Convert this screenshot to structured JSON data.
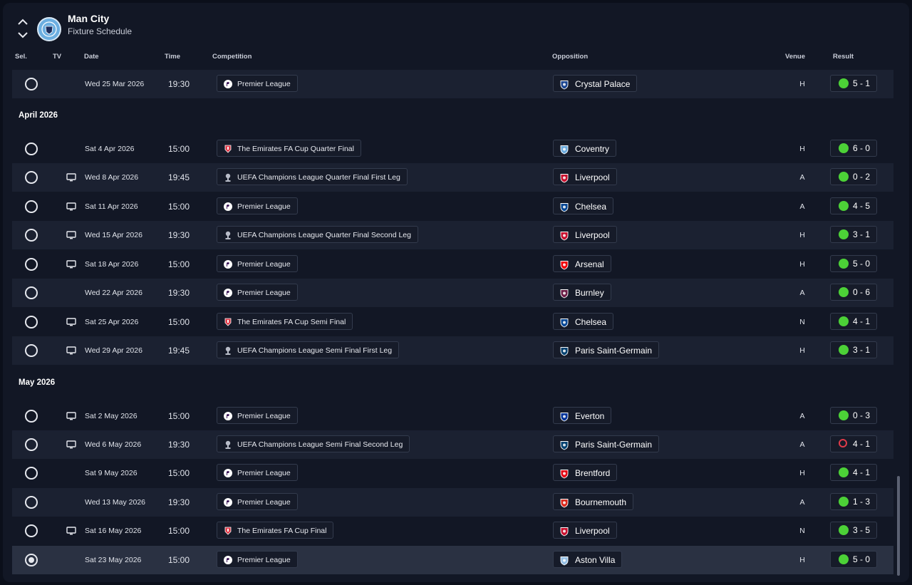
{
  "header": {
    "club_name": "Man City",
    "subtitle": "Fixture Schedule"
  },
  "columns": {
    "sel": "Sel.",
    "tv": "TV",
    "date": "Date",
    "time": "Time",
    "competition": "Competition",
    "opposition": "Opposition",
    "venue": "Venue",
    "result": "Result"
  },
  "months": [
    "April 2026",
    "May 2026"
  ],
  "fixtures": [
    {
      "date": "Wed 25 Mar 2026",
      "time": "19:30",
      "tv": false,
      "competition": "Premier League",
      "comp_icon": "premier-league-icon",
      "opposition": "Crystal Palace",
      "venue": "H",
      "result": "5 - 1",
      "outcome": "win",
      "selected": false
    },
    {
      "date": "Sat 4 Apr 2026",
      "time": "15:00",
      "tv": false,
      "competition": "The Emirates FA Cup Quarter Final",
      "comp_icon": "fa-cup-icon",
      "opposition": "Coventry",
      "venue": "H",
      "result": "6 - 0",
      "outcome": "win",
      "selected": false
    },
    {
      "date": "Wed 8 Apr 2026",
      "time": "19:45",
      "tv": true,
      "competition": "UEFA Champions League Quarter Final First Leg",
      "comp_icon": "champions-league-icon",
      "opposition": "Liverpool",
      "venue": "A",
      "result": "0 - 2",
      "outcome": "win",
      "selected": false
    },
    {
      "date": "Sat 11 Apr 2026",
      "time": "15:00",
      "tv": true,
      "competition": "Premier League",
      "comp_icon": "premier-league-icon",
      "opposition": "Chelsea",
      "venue": "A",
      "result": "4 - 5",
      "outcome": "win",
      "selected": false
    },
    {
      "date": "Wed 15 Apr 2026",
      "time": "19:30",
      "tv": true,
      "competition": "UEFA Champions League Quarter Final Second Leg",
      "comp_icon": "champions-league-icon",
      "opposition": "Liverpool",
      "venue": "H",
      "result": "3 - 1",
      "outcome": "win",
      "selected": false
    },
    {
      "date": "Sat 18 Apr 2026",
      "time": "15:00",
      "tv": true,
      "competition": "Premier League",
      "comp_icon": "premier-league-icon",
      "opposition": "Arsenal",
      "venue": "H",
      "result": "5 - 0",
      "outcome": "win",
      "selected": false
    },
    {
      "date": "Wed 22 Apr 2026",
      "time": "19:30",
      "tv": false,
      "competition": "Premier League",
      "comp_icon": "premier-league-icon",
      "opposition": "Burnley",
      "venue": "A",
      "result": "0 - 6",
      "outcome": "win",
      "selected": false
    },
    {
      "date": "Sat 25 Apr 2026",
      "time": "15:00",
      "tv": true,
      "competition": "The Emirates FA Cup Semi Final",
      "comp_icon": "fa-cup-icon",
      "opposition": "Chelsea",
      "venue": "N",
      "result": "4 - 1",
      "outcome": "win",
      "selected": false
    },
    {
      "date": "Wed 29 Apr 2026",
      "time": "19:45",
      "tv": true,
      "competition": "UEFA Champions League Semi Final First Leg",
      "comp_icon": "champions-league-icon",
      "opposition": "Paris Saint-Germain",
      "venue": "H",
      "result": "3 - 1",
      "outcome": "win",
      "selected": false
    },
    {
      "date": "Sat 2 May 2026",
      "time": "15:00",
      "tv": true,
      "competition": "Premier League",
      "comp_icon": "premier-league-icon",
      "opposition": "Everton",
      "venue": "A",
      "result": "0 - 3",
      "outcome": "win",
      "selected": false
    },
    {
      "date": "Wed 6 May 2026",
      "time": "19:30",
      "tv": true,
      "competition": "UEFA Champions League Semi Final Second Leg",
      "comp_icon": "champions-league-icon",
      "opposition": "Paris Saint-Germain",
      "venue": "A",
      "result": "4 - 1",
      "outcome": "loss",
      "selected": false
    },
    {
      "date": "Sat 9 May 2026",
      "time": "15:00",
      "tv": false,
      "competition": "Premier League",
      "comp_icon": "premier-league-icon",
      "opposition": "Brentford",
      "venue": "H",
      "result": "4 - 1",
      "outcome": "win",
      "selected": false
    },
    {
      "date": "Wed 13 May 2026",
      "time": "19:30",
      "tv": false,
      "competition": "Premier League",
      "comp_icon": "premier-league-icon",
      "opposition": "Bournemouth",
      "venue": "A",
      "result": "1 - 3",
      "outcome": "win",
      "selected": false
    },
    {
      "date": "Sat 16 May 2026",
      "time": "15:00",
      "tv": true,
      "competition": "The Emirates FA Cup Final",
      "comp_icon": "fa-cup-icon",
      "opposition": "Liverpool",
      "venue": "N",
      "result": "3 - 5",
      "outcome": "win",
      "selected": false
    },
    {
      "date": "Sat 23 May 2026",
      "time": "15:00",
      "tv": false,
      "competition": "Premier League",
      "comp_icon": "premier-league-icon",
      "opposition": "Aston Villa",
      "venue": "H",
      "result": "5 - 0",
      "outcome": "win",
      "selected": true
    }
  ],
  "team_colors": {
    "Crystal Palace": "#1b458f",
    "Coventry": "#6cabdd",
    "Liverpool": "#c8102e",
    "Chelsea": "#034694",
    "Arsenal": "#ef0107",
    "Burnley": "#6c1d45",
    "Paris Saint-Germain": "#004170",
    "Everton": "#003399",
    "Brentford": "#e30613",
    "Bournemouth": "#da291c",
    "Aston Villa": "#95bfe5"
  },
  "colors": {
    "win": "#4cd137",
    "loss": "#e03b4a"
  }
}
